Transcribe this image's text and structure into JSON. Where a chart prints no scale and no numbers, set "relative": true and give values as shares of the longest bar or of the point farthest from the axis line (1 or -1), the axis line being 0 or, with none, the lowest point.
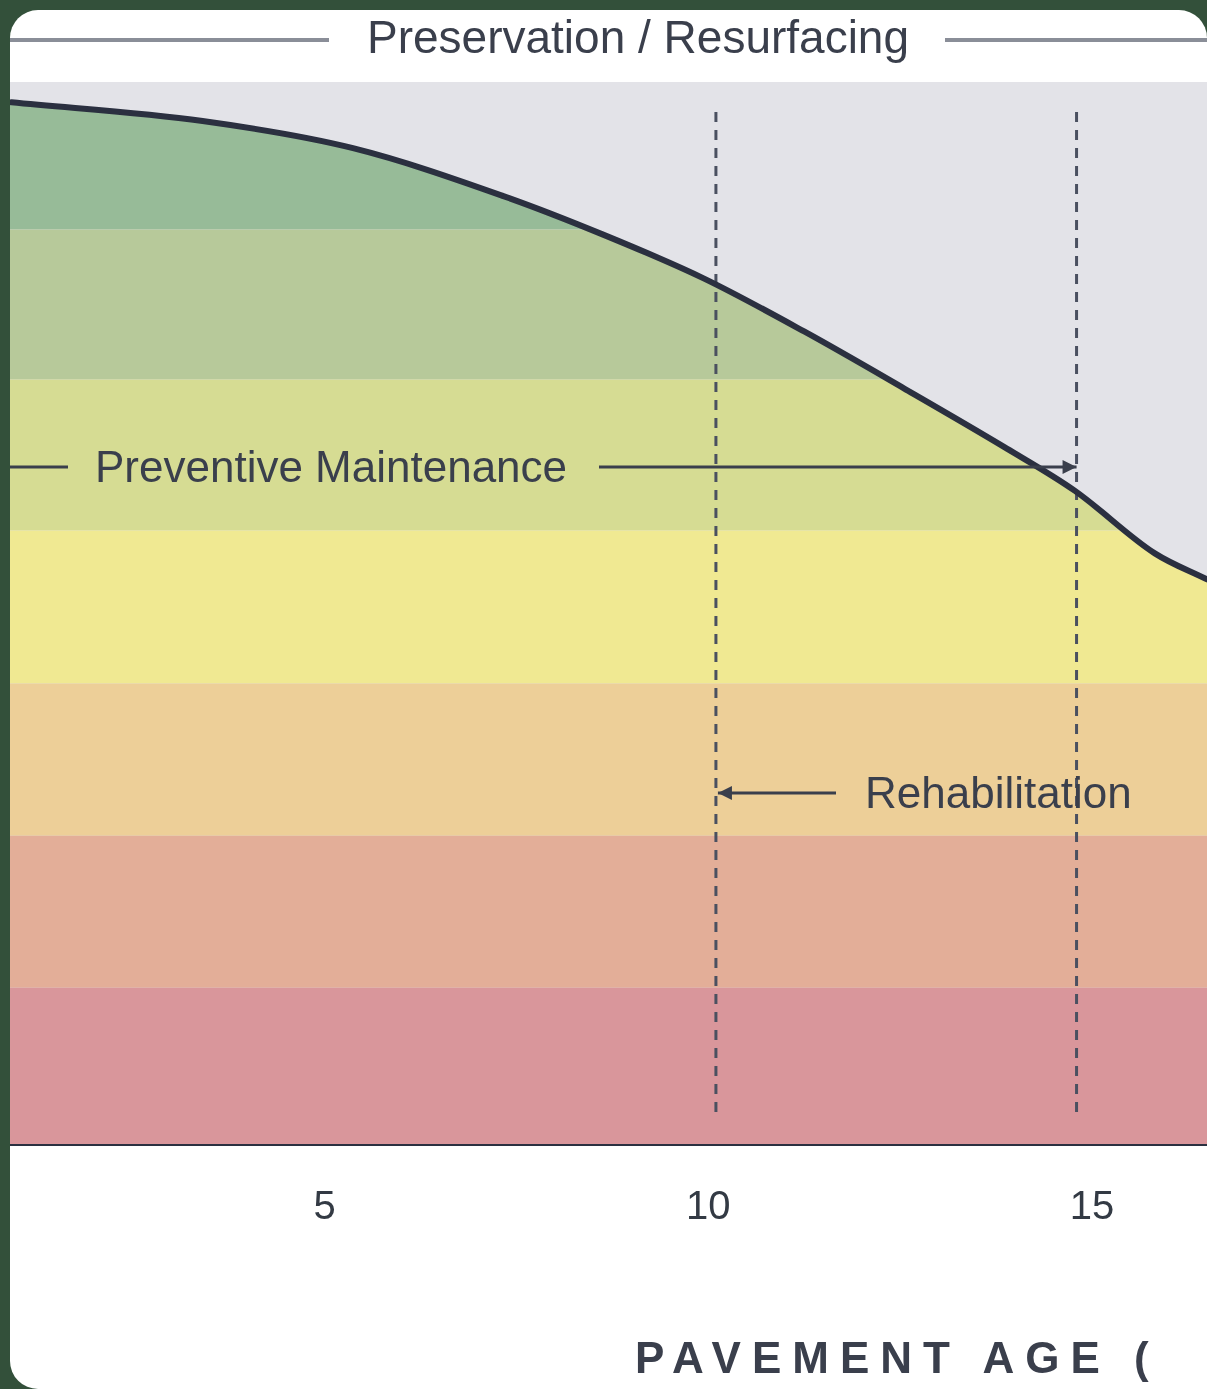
{
  "chart_data": {
    "type": "line",
    "title": "Preservation / Resurfacing",
    "xlabel": "PAVEMENT AGE (",
    "relative": true,
    "x": [
      0.92,
      3.41,
      5.37,
      7.33,
      8.63,
      9.94,
      11.25,
      12.56,
      13.86,
      14.78,
      15.82,
      16.5
    ],
    "series": [
      {
        "color": "#2b3040",
        "values": [
          1.0,
          0.982,
          0.956,
          0.91,
          0.873,
          0.831,
          0.78,
          0.725,
          0.669,
          0.627,
          0.567,
          0.542
        ]
      }
    ],
    "xlim": [
      0.9,
      16.5
    ],
    "xticks": [
      5,
      10,
      15
    ],
    "legend": false,
    "marker": "none",
    "line_style": "solid",
    "tick_labels": "x",
    "bands": [
      {
        "axis": "y",
        "from": 0.878,
        "to": 1.0,
        "color": "#97bb98"
      },
      {
        "axis": "y",
        "from": 0.734,
        "to": 0.878,
        "color": "#b7c99a"
      },
      {
        "axis": "y",
        "from": 0.589,
        "to": 0.734,
        "color": "#d6dc93"
      },
      {
        "axis": "y",
        "from": 0.442,
        "to": 0.589,
        "color": "#f0e992"
      },
      {
        "axis": "y",
        "from": 0.296,
        "to": 0.442,
        "color": "#edcf98"
      },
      {
        "axis": "y",
        "from": 0.15,
        "to": 0.296,
        "color": "#e3ae98"
      },
      {
        "axis": "y",
        "from": 0,
        "to": 0.15,
        "color": "#d9969b"
      }
    ],
    "ref_lines": [
      {
        "axis": "x",
        "value": 10.1,
        "color": "#4a5060",
        "line_style": "dashed"
      },
      {
        "axis": "x",
        "value": 14.8,
        "color": "#4a5060",
        "line_style": "dashed"
      }
    ],
    "annotations": [
      "Preventive Maintenance",
      "Rehabilitation"
    ]
  }
}
